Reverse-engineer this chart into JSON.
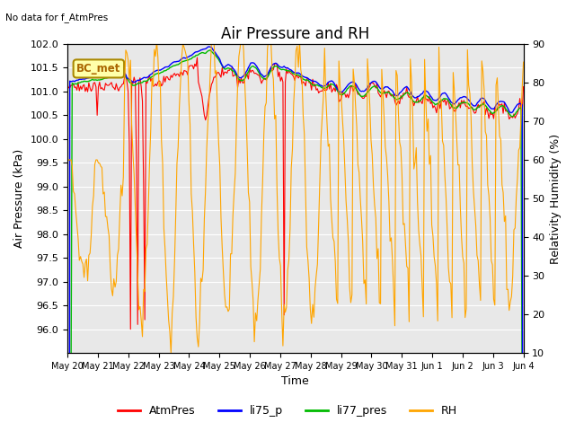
{
  "title": "Air Pressure and RH",
  "top_left_text": "No data for f_AtmPres",
  "box_label": "BC_met",
  "xlabel": "Time",
  "ylabel_left": "Air Pressure (kPa)",
  "ylabel_right": "Relativity Humidity (%)",
  "ylim_left": [
    95.5,
    102.0
  ],
  "ylim_right": [
    10,
    90
  ],
  "yticks_left": [
    96.0,
    96.5,
    97.0,
    97.5,
    98.0,
    98.5,
    99.0,
    99.5,
    100.0,
    100.5,
    101.0,
    101.5,
    102.0
  ],
  "yticks_right": [
    10,
    20,
    30,
    40,
    50,
    60,
    70,
    80,
    90
  ],
  "x_labels": [
    "May 20",
    "May 21",
    "May 22",
    "May 23",
    "May 24",
    "May 25",
    "May 26",
    "May 27",
    "May 28",
    "May 29",
    "May 30",
    "May 31",
    "Jun 1",
    "Jun 2",
    "Jun 3",
    "Jun 4"
  ],
  "colors": {
    "AtmPres": "#FF0000",
    "li75_p": "#0000FF",
    "li77_pres": "#00BB00",
    "RH": "#FFA500",
    "background": "#E8E8E8",
    "grid": "#FFFFFF"
  },
  "legend_entries": [
    "AtmPres",
    "li75_p",
    "li77_pres",
    "RH"
  ],
  "title_fontsize": 12,
  "label_fontsize": 9,
  "tick_fontsize": 8
}
